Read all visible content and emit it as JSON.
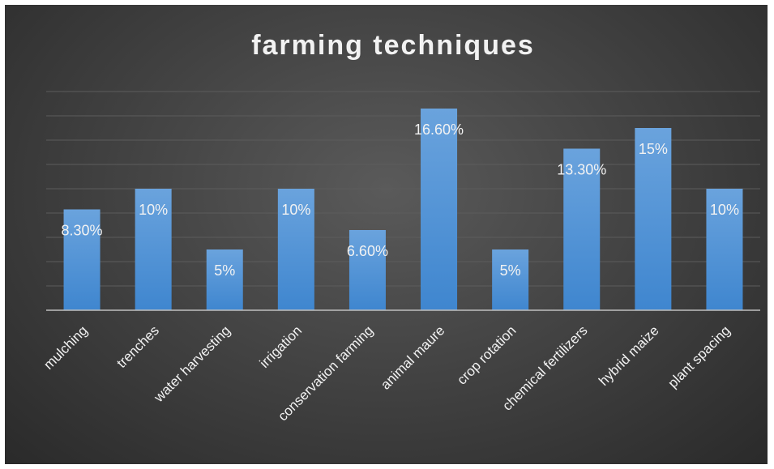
{
  "chart_data": {
    "type": "bar",
    "title": "farming techniques",
    "categories": [
      "mulching",
      "trenches",
      "water harvesting",
      "irrigation",
      "conservation farming",
      "animal maure",
      "crop rotation",
      "chemical fertilizers",
      "hybrid maize",
      "plant spacing"
    ],
    "values": [
      8.3,
      10,
      5,
      10,
      6.6,
      16.6,
      5,
      13.3,
      15,
      10
    ],
    "data_labels": [
      "8.30%",
      "10%",
      "5%",
      "10%",
      "6.60%",
      "16.60%",
      "5%",
      "13.30%",
      "15%",
      "10%"
    ],
    "ylim": [
      0,
      18
    ],
    "grid": true,
    "legend": "none",
    "colors": {
      "bar_top": "#6aa3dd",
      "bar_bottom": "#3f86cf",
      "grid": "#5c5c5c",
      "axis": "#bfbfbf",
      "text": "#f2f2f2"
    }
  }
}
